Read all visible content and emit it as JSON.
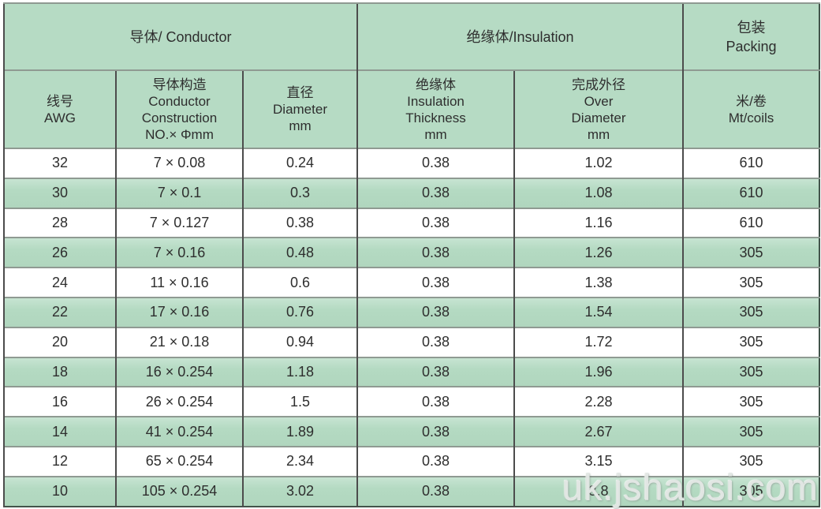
{
  "chart_data": {
    "type": "table",
    "column_groups": [
      {
        "label": "导体/ Conductor",
        "span": 3
      },
      {
        "label": "绝缘体/Insulation",
        "span": 2
      },
      {
        "label": "包装\nPacking",
        "span": 1
      }
    ],
    "columns": [
      "线号\nAWG",
      "导体构造\nConductor\nConstruction\nNO.× Φmm",
      "直径\nDiameter\nmm",
      "绝缘体\nInsulation\nThickness\nmm",
      "完成外径\nOver\nDiameter\nmm",
      "米/卷\nMt/coils"
    ],
    "rows": [
      [
        "32",
        "7 × 0.08",
        "0.24",
        "0.38",
        "1.02",
        "610"
      ],
      [
        "30",
        "7 × 0.1",
        "0.3",
        "0.38",
        "1.08",
        "610"
      ],
      [
        "28",
        "7 × 0.127",
        "0.38",
        "0.38",
        "1.16",
        "610"
      ],
      [
        "26",
        "7 × 0.16",
        "0.48",
        "0.38",
        "1.26",
        "305"
      ],
      [
        "24",
        "11 × 0.16",
        "0.6",
        "0.38",
        "1.38",
        "305"
      ],
      [
        "22",
        "17 × 0.16",
        "0.76",
        "0.38",
        "1.54",
        "305"
      ],
      [
        "20",
        "21 × 0.18",
        "0.94",
        "0.38",
        "1.72",
        "305"
      ],
      [
        "18",
        "16 × 0.254",
        "1.18",
        "0.38",
        "1.96",
        "305"
      ],
      [
        "16",
        "26 × 0.254",
        "1.5",
        "0.38",
        "2.28",
        "305"
      ],
      [
        "14",
        "41 × 0.254",
        "1.89",
        "0.38",
        "2.67",
        "305"
      ],
      [
        "12",
        "65 × 0.254",
        "2.34",
        "0.38",
        "3.15",
        "305"
      ],
      [
        "10",
        "105 × 0.254",
        "3.02",
        "0.38",
        "3.8",
        "305"
      ]
    ],
    "row_stripe_pattern": "white/green alternating, first data row white",
    "layout_hints": {
      "grid": "on",
      "header_fill": "#b6dbc4",
      "stripe_fill": "#b4dac2",
      "vertical_grid_color": "#4c4c4c",
      "horizontal_grid_color": "#8f9a92",
      "outer_border_color": "#42534a"
    }
  },
  "watermark": {
    "text": "uk.jshaosi.com"
  }
}
